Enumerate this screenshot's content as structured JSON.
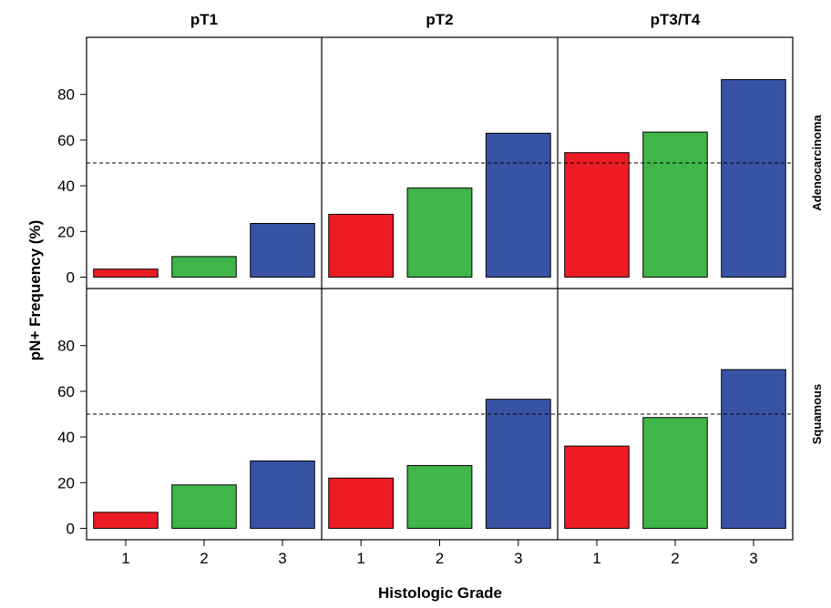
{
  "chart_data": {
    "type": "bar",
    "ylabel": "pN+ Frequency (%)",
    "xlabel": "Histologic Grade",
    "columns": [
      "pT1",
      "pT2",
      "pT3/T4"
    ],
    "rows": [
      "Adenocarcinoma",
      "Squamous"
    ],
    "categories": [
      "1",
      "2",
      "3"
    ],
    "yticks": [
      0,
      20,
      40,
      60,
      80
    ],
    "ylim": [
      -5,
      105
    ],
    "reference_line": 50,
    "grid": false,
    "bar_colors": [
      "#ed1c24",
      "#3fb54a",
      "#3953a4"
    ],
    "panels": [
      {
        "row": "Adenocarcinoma",
        "column": "pT1",
        "values": [
          3.5,
          9,
          23.5
        ]
      },
      {
        "row": "Adenocarcinoma",
        "column": "pT2",
        "values": [
          27.5,
          39,
          63
        ]
      },
      {
        "row": "Adenocarcinoma",
        "column": "pT3/T4",
        "values": [
          54.5,
          63.5,
          86.5
        ]
      },
      {
        "row": "Squamous",
        "column": "pT1",
        "values": [
          7,
          19,
          29.5
        ]
      },
      {
        "row": "Squamous",
        "column": "pT2",
        "values": [
          22,
          27.5,
          56.5
        ]
      },
      {
        "row": "Squamous",
        "column": "pT3/T4",
        "values": [
          36,
          48.5,
          69.5
        ]
      }
    ]
  }
}
